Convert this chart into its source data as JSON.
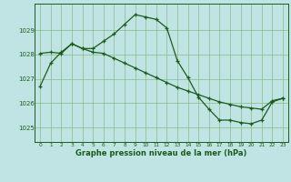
{
  "title": "Graphe pression niveau de la mer (hPa)",
  "bg_color": "#c0e4e4",
  "grid_color": "#88bb88",
  "line_color": "#1a5c1a",
  "xlim": [
    -0.5,
    23.5
  ],
  "ylim": [
    1024.4,
    1030.1
  ],
  "yticks": [
    1025,
    1026,
    1027,
    1028,
    1029
  ],
  "xticks": [
    0,
    1,
    2,
    3,
    4,
    5,
    6,
    7,
    8,
    9,
    10,
    11,
    12,
    13,
    14,
    15,
    16,
    17,
    18,
    19,
    20,
    21,
    22,
    23
  ],
  "line1_x": [
    0,
    1,
    2,
    3,
    4,
    5,
    6,
    7,
    8,
    9,
    10,
    11,
    12,
    13,
    14,
    15,
    16,
    17,
    18,
    19,
    20,
    21,
    22,
    23
  ],
  "line1_y": [
    1026.7,
    1027.65,
    1028.1,
    1028.45,
    1028.25,
    1028.25,
    1028.55,
    1028.85,
    1029.25,
    1029.65,
    1029.55,
    1029.45,
    1029.1,
    1027.75,
    1027.05,
    1026.25,
    1025.75,
    1025.3,
    1025.3,
    1025.2,
    1025.15,
    1025.3,
    1026.05,
    1026.2
  ],
  "line2_x": [
    0,
    1,
    2,
    3,
    4,
    5,
    6,
    7,
    8,
    9,
    10,
    11,
    12,
    13,
    14,
    15,
    16,
    17,
    18,
    19,
    20,
    21,
    22,
    23
  ],
  "line2_y": [
    1028.05,
    1028.1,
    1028.05,
    1028.45,
    1028.25,
    1028.1,
    1028.05,
    1027.85,
    1027.65,
    1027.45,
    1027.25,
    1027.05,
    1026.85,
    1026.65,
    1026.5,
    1026.35,
    1026.2,
    1026.05,
    1025.95,
    1025.85,
    1025.8,
    1025.75,
    1026.1,
    1026.2
  ]
}
